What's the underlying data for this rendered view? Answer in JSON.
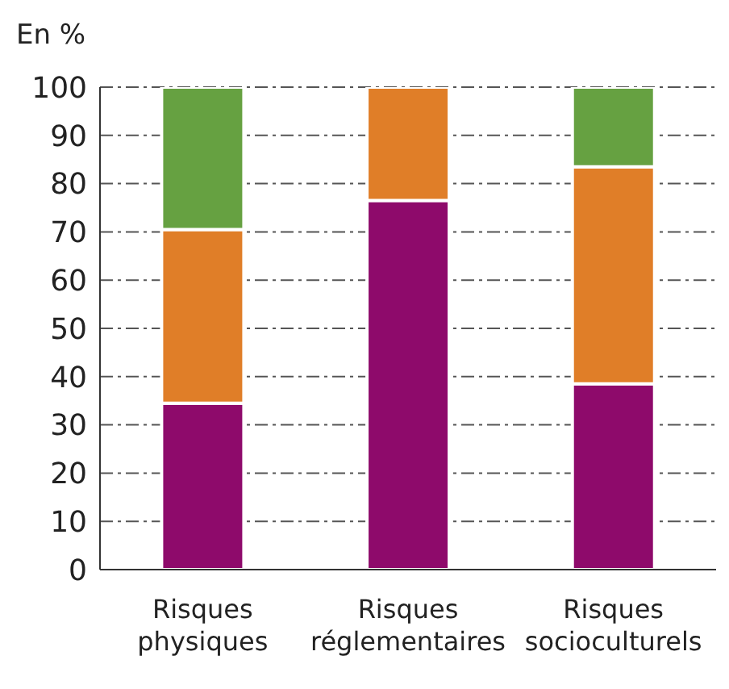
{
  "chart_data": {
    "type": "bar",
    "ylabel": "En %",
    "categories": [
      "Risques physiques",
      "Risques réglementaires",
      "Risques socioculturels"
    ],
    "stacked": true,
    "series": [
      {
        "color": "#8e0a6b",
        "values": [
          34.5,
          76.5,
          38.5
        ]
      },
      {
        "color": "#e07e28",
        "values": [
          36,
          23.5,
          45
        ]
      },
      {
        "color": "#66a141",
        "values": [
          29.5,
          null,
          16.5
        ]
      }
    ],
    "ylim": [
      0,
      100
    ],
    "yticks": [
      0,
      10,
      20,
      30,
      40,
      50,
      60,
      70,
      80,
      90,
      100
    ],
    "grid": "y",
    "legend": false
  }
}
